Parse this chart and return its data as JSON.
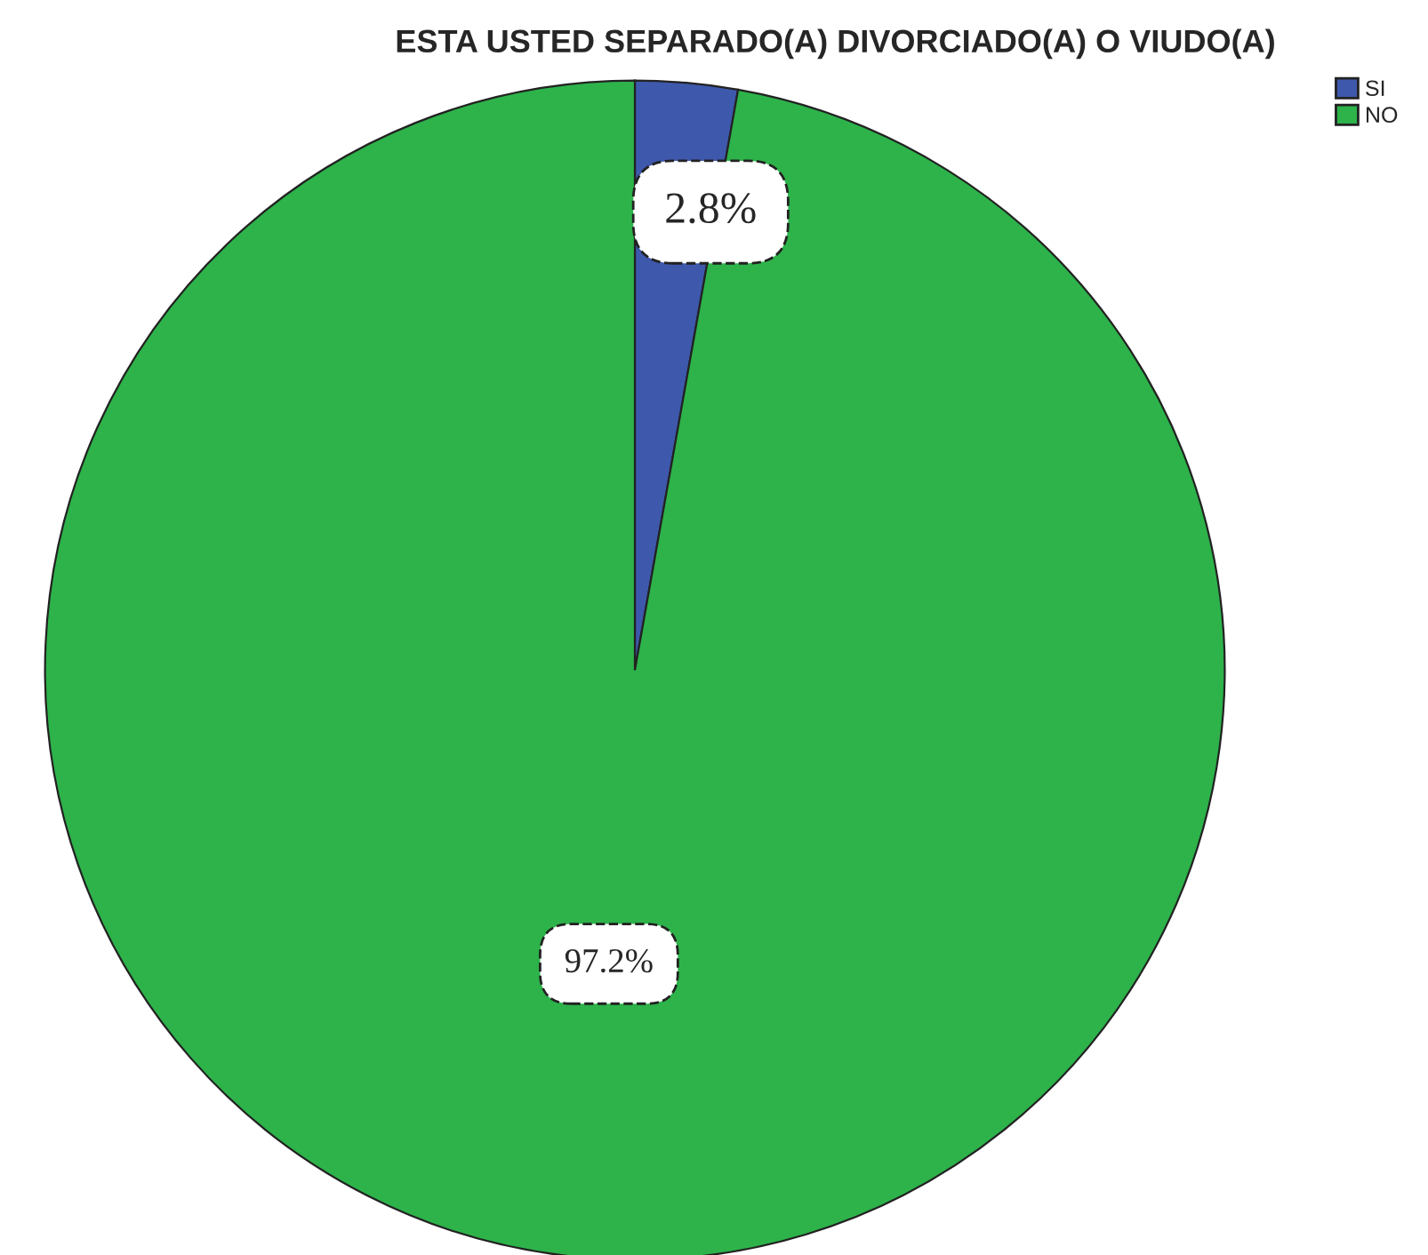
{
  "chart_data": {
    "type": "pie",
    "title": "ESTA USTED SEPARADO(A) DIVORCIADO(A) O VIUDO(A)",
    "categories": [
      "SI",
      "NO"
    ],
    "values": [
      2.8,
      97.2
    ],
    "colors": [
      "#3e58ac",
      "#2db34a"
    ],
    "value_labels": [
      "2.8%",
      "97.2%"
    ],
    "legend": "top right"
  }
}
